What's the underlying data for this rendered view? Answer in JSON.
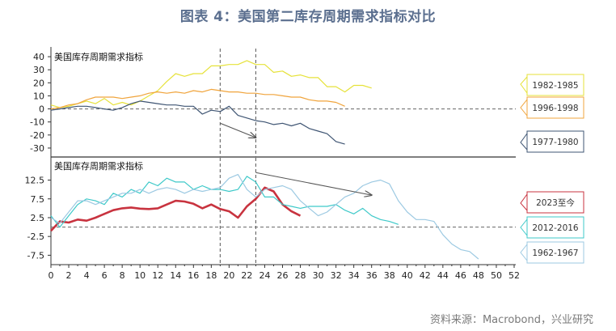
{
  "figure": {
    "title": "图表 4：美国第二库存周期需求指标对比",
    "source": "资料来源：Macrobond，兴业研究"
  },
  "chart_data": [
    {
      "type": "line",
      "title": "美国库存周期需求指标",
      "xlim": [
        0,
        52
      ],
      "ylim": [
        -35,
        45
      ],
      "yticks": [
        40,
        30,
        20,
        10,
        0,
        -10,
        -20,
        -30
      ],
      "reference_lines": {
        "horizontal": [
          0
        ],
        "vertical": [
          19,
          23
        ]
      },
      "annotation_arrow": {
        "from": [
          19,
          -11
        ],
        "to": [
          23,
          -22
        ]
      },
      "series": [
        {
          "name": "1982-1985",
          "color": "#e6e23a",
          "points": [
            [
              0,
              3
            ],
            [
              1,
              1
            ],
            [
              2,
              2
            ],
            [
              3,
              4
            ],
            [
              4,
              6
            ],
            [
              5,
              4
            ],
            [
              6,
              8
            ],
            [
              7,
              3
            ],
            [
              8,
              5
            ],
            [
              9,
              3
            ],
            [
              10,
              6
            ],
            [
              11,
              10
            ],
            [
              12,
              14
            ],
            [
              13,
              21
            ],
            [
              14,
              27
            ],
            [
              15,
              25
            ],
            [
              16,
              27
            ],
            [
              17,
              27
            ],
            [
              18,
              33
            ],
            [
              19,
              33
            ],
            [
              20,
              34
            ],
            [
              21,
              34
            ],
            [
              22,
              37
            ],
            [
              23,
              34
            ],
            [
              24,
              34
            ],
            [
              25,
              28
            ],
            [
              26,
              29
            ],
            [
              27,
              25
            ],
            [
              28,
              26
            ],
            [
              29,
              24
            ],
            [
              30,
              24
            ],
            [
              31,
              17
            ],
            [
              32,
              17
            ],
            [
              33,
              13
            ],
            [
              34,
              18
            ],
            [
              35,
              18
            ],
            [
              36,
              16
            ]
          ]
        },
        {
          "name": "1996-1998",
          "color": "#f0a43c",
          "points": [
            [
              0,
              0
            ],
            [
              1,
              1
            ],
            [
              2,
              3
            ],
            [
              3,
              4
            ],
            [
              4,
              7
            ],
            [
              5,
              9
            ],
            [
              6,
              9
            ],
            [
              7,
              9
            ],
            [
              8,
              8
            ],
            [
              9,
              9
            ],
            [
              10,
              10
            ],
            [
              11,
              12
            ],
            [
              12,
              13
            ],
            [
              13,
              12
            ],
            [
              14,
              13
            ],
            [
              15,
              12
            ],
            [
              16,
              14
            ],
            [
              17,
              13
            ],
            [
              18,
              15
            ],
            [
              19,
              14
            ],
            [
              20,
              13
            ],
            [
              21,
              13
            ],
            [
              22,
              12
            ],
            [
              23,
              12
            ],
            [
              24,
              11
            ],
            [
              25,
              11
            ],
            [
              26,
              10
            ],
            [
              27,
              9
            ],
            [
              28,
              9
            ],
            [
              29,
              7
            ],
            [
              30,
              6
            ],
            [
              31,
              6
            ],
            [
              32,
              5
            ],
            [
              33,
              2
            ]
          ]
        },
        {
          "name": "1977-1980",
          "color": "#3f5573",
          "points": [
            [
              0,
              -1
            ],
            [
              1,
              0
            ],
            [
              2,
              1
            ],
            [
              3,
              2
            ],
            [
              4,
              2
            ],
            [
              5,
              1
            ],
            [
              6,
              0
            ],
            [
              7,
              -1
            ],
            [
              8,
              1
            ],
            [
              9,
              4
            ],
            [
              10,
              6
            ],
            [
              11,
              5
            ],
            [
              12,
              4
            ],
            [
              13,
              3
            ],
            [
              14,
              3
            ],
            [
              15,
              2
            ],
            [
              16,
              2
            ],
            [
              17,
              -4
            ],
            [
              18,
              -1
            ],
            [
              19,
              -2
            ],
            [
              20,
              2
            ],
            [
              21,
              -5
            ],
            [
              22,
              -7
            ],
            [
              23,
              -9
            ],
            [
              24,
              -10
            ],
            [
              25,
              -12
            ],
            [
              26,
              -11
            ],
            [
              27,
              -13
            ],
            [
              28,
              -11
            ],
            [
              29,
              -15
            ],
            [
              30,
              -17
            ],
            [
              31,
              -19
            ],
            [
              32,
              -25
            ],
            [
              33,
              -27
            ]
          ]
        }
      ],
      "legend": [
        "1982-1985",
        "1996-1998",
        "1977-1980"
      ]
    },
    {
      "type": "line",
      "title": "美国库存周期需求指标",
      "xlim": [
        0,
        52
      ],
      "ylim": [
        -10,
        18
      ],
      "yticks": [
        12.5,
        7.5,
        2.5,
        -2.5,
        -7.5
      ],
      "xticks": [
        0,
        2,
        4,
        6,
        8,
        10,
        12,
        14,
        16,
        18,
        20,
        22,
        24,
        26,
        28,
        30,
        32,
        34,
        36,
        38,
        40,
        42,
        44,
        46,
        48,
        50,
        52
      ],
      "reference_lines": {
        "horizontal": [
          0
        ],
        "vertical": [
          19,
          23
        ]
      },
      "annotation_arrow": {
        "from": [
          23,
          14.5
        ],
        "to": [
          36,
          8.5
        ]
      },
      "series": [
        {
          "name": "2023至今",
          "color": "#c8333f",
          "points": [
            [
              0,
              -1
            ],
            [
              1,
              1.5
            ],
            [
              2,
              1.2
            ],
            [
              3,
              2
            ],
            [
              4,
              1.7
            ],
            [
              5,
              2.5
            ],
            [
              6,
              3.5
            ],
            [
              7,
              4.5
            ],
            [
              8,
              5
            ],
            [
              9,
              5.2
            ],
            [
              10,
              4.9
            ],
            [
              11,
              4.8
            ],
            [
              12,
              5
            ],
            [
              13,
              6
            ],
            [
              14,
              7
            ],
            [
              15,
              6.8
            ],
            [
              16,
              6.2
            ],
            [
              17,
              5
            ],
            [
              18,
              6
            ],
            [
              19,
              4.8
            ],
            [
              20,
              4.2
            ],
            [
              21,
              2.5
            ],
            [
              22,
              5.5
            ],
            [
              23,
              7.5
            ],
            [
              24,
              10.5
            ],
            [
              25,
              9.5
            ],
            [
              26,
              6
            ],
            [
              27,
              4.2
            ],
            [
              28,
              3
            ]
          ]
        },
        {
          "name": "2012-2016",
          "color": "#3ec9c9",
          "points": [
            [
              0,
              3
            ],
            [
              1,
              0
            ],
            [
              2,
              3
            ],
            [
              3,
              6
            ],
            [
              4,
              7.5
            ],
            [
              5,
              7
            ],
            [
              6,
              6
            ],
            [
              7,
              9
            ],
            [
              8,
              8
            ],
            [
              9,
              10
            ],
            [
              10,
              9
            ],
            [
              11,
              12
            ],
            [
              12,
              11
            ],
            [
              13,
              13
            ],
            [
              14,
              12
            ],
            [
              15,
              12
            ],
            [
              16,
              10
            ],
            [
              17,
              11
            ],
            [
              18,
              10
            ],
            [
              19,
              10
            ],
            [
              20,
              9.5
            ],
            [
              21,
              10
            ],
            [
              22,
              13.5
            ],
            [
              23,
              12
            ],
            [
              24,
              8
            ],
            [
              25,
              8
            ],
            [
              26,
              6
            ],
            [
              27,
              5.5
            ],
            [
              28,
              5
            ],
            [
              29,
              5.5
            ],
            [
              30,
              5.5
            ],
            [
              31,
              5.5
            ],
            [
              32,
              6
            ],
            [
              33,
              4.5
            ],
            [
              34,
              3.5
            ],
            [
              35,
              5
            ],
            [
              36,
              3
            ],
            [
              37,
              2
            ],
            [
              38,
              1.5
            ],
            [
              39,
              0.7
            ]
          ]
        },
        {
          "name": "1962-1967",
          "color": "#9cc9e2",
          "points": [
            [
              0,
              2.5
            ],
            [
              1,
              1
            ],
            [
              2,
              4
            ],
            [
              3,
              7
            ],
            [
              4,
              7
            ],
            [
              5,
              6
            ],
            [
              6,
              7
            ],
            [
              7,
              8
            ],
            [
              8,
              9
            ],
            [
              9,
              9
            ],
            [
              10,
              10
            ],
            [
              11,
              9
            ],
            [
              12,
              10
            ],
            [
              13,
              10.5
            ],
            [
              14,
              10
            ],
            [
              15,
              9
            ],
            [
              16,
              10
            ],
            [
              17,
              9.5
            ],
            [
              18,
              10
            ],
            [
              19,
              10.5
            ],
            [
              20,
              13
            ],
            [
              21,
              14
            ],
            [
              22,
              10
            ],
            [
              23,
              8
            ],
            [
              24,
              10
            ],
            [
              25,
              10.5
            ],
            [
              26,
              11
            ],
            [
              27,
              10
            ],
            [
              28,
              7
            ],
            [
              29,
              5
            ],
            [
              30,
              3
            ],
            [
              31,
              4
            ],
            [
              32,
              6
            ],
            [
              33,
              8
            ],
            [
              34,
              9
            ],
            [
              35,
              11
            ],
            [
              36,
              12
            ],
            [
              37,
              12.5
            ],
            [
              38,
              11.5
            ],
            [
              39,
              7
            ],
            [
              40,
              4
            ],
            [
              41,
              2
            ],
            [
              42,
              2
            ],
            [
              43,
              1.5
            ],
            [
              44,
              -2
            ],
            [
              45,
              -4.5
            ],
            [
              46,
              -6
            ],
            [
              47,
              -6.5
            ],
            [
              48,
              -8.5
            ]
          ]
        }
      ],
      "legend": [
        "2023至今",
        "2012-2016",
        "1962-1967"
      ]
    }
  ]
}
